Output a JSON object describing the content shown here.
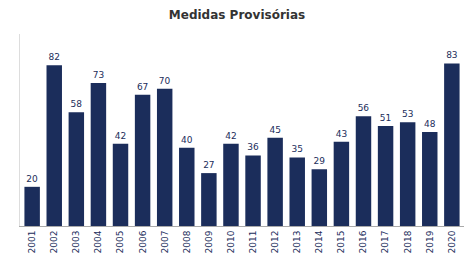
{
  "chart_data": {
    "type": "bar",
    "title": "Medidas Provisórias",
    "categories": [
      "2001",
      "2002",
      "2003",
      "2004",
      "2005",
      "2006",
      "2007",
      "2008",
      "2009",
      "2010",
      "2011",
      "2012",
      "2013",
      "2014",
      "2015",
      "2016",
      "2017",
      "2018",
      "2019",
      "2020"
    ],
    "values": [
      20,
      82,
      58,
      73,
      42,
      67,
      70,
      40,
      27,
      42,
      36,
      45,
      35,
      29,
      43,
      56,
      51,
      53,
      48,
      83
    ],
    "color": "#1b2d5b",
    "ylim": [
      0,
      98
    ],
    "data_labels": true,
    "tick_labels": "x",
    "grid": false
  }
}
